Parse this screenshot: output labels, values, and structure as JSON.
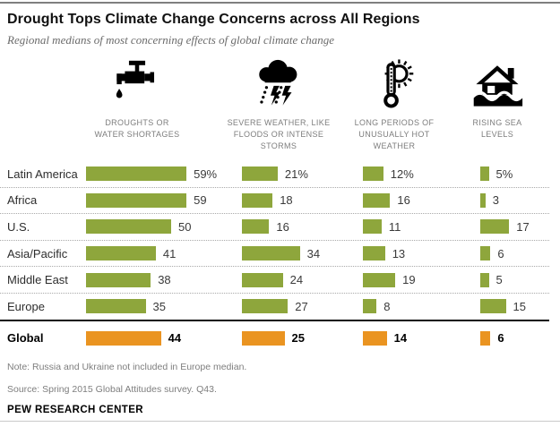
{
  "header": {
    "title": "Drought Tops Climate Change Concerns across All Regions",
    "subtitle": "Regional medians of most concerning effects of global climate change"
  },
  "chart_data": {
    "type": "bar",
    "unit": "percent",
    "orientation": "horizontal",
    "bar_colors": {
      "regional": "#8EA63C",
      "global": "#EA9421"
    },
    "columns": [
      {
        "icon": "faucet-icon",
        "label_lines": [
          "DROUGHTS OR",
          "WATER SHORTAGES"
        ]
      },
      {
        "icon": "storm-cloud-icon",
        "label_lines": [
          "SEVERE WEATHER, LIKE",
          "FLOODS OR INTENSE",
          "STORMS"
        ]
      },
      {
        "icon": "thermometer-sun-icon",
        "label_lines": [
          "LONG PERIODS OF",
          "UNUSUALLY HOT",
          "WEATHER"
        ]
      },
      {
        "icon": "flooded-house-icon",
        "label_lines": [
          "RISING SEA",
          "LEVELS"
        ]
      }
    ],
    "rows": [
      {
        "region": "Latin America",
        "values": [
          59,
          21,
          12,
          5
        ],
        "display": [
          "59%",
          "21%",
          "12%",
          "5%"
        ],
        "emphasis": false
      },
      {
        "region": "Africa",
        "values": [
          59,
          18,
          16,
          3
        ],
        "display": [
          "59",
          "18",
          "16",
          "3"
        ],
        "emphasis": false
      },
      {
        "region": "U.S.",
        "values": [
          50,
          16,
          11,
          17
        ],
        "display": [
          "50",
          "16",
          "11",
          "17"
        ],
        "emphasis": false
      },
      {
        "region": "Asia/Pacific",
        "values": [
          41,
          34,
          13,
          6
        ],
        "display": [
          "41",
          "34",
          "13",
          "6"
        ],
        "emphasis": false
      },
      {
        "region": "Middle East",
        "values": [
          38,
          24,
          19,
          5
        ],
        "display": [
          "38",
          "24",
          "19",
          "5"
        ],
        "emphasis": false
      },
      {
        "region": "Europe",
        "values": [
          35,
          27,
          8,
          15
        ],
        "display": [
          "35",
          "27",
          "8",
          "15"
        ],
        "emphasis": false
      },
      {
        "region": "Global",
        "values": [
          44,
          25,
          14,
          6
        ],
        "display": [
          "44",
          "25",
          "14",
          "6"
        ],
        "emphasis": true
      }
    ]
  },
  "footer": {
    "note": "Note: Russia and Ukraine not included in Europe median.",
    "source": "Source: Spring 2015 Global Attitudes survey. Q43.",
    "brand": "PEW RESEARCH CENTER"
  }
}
